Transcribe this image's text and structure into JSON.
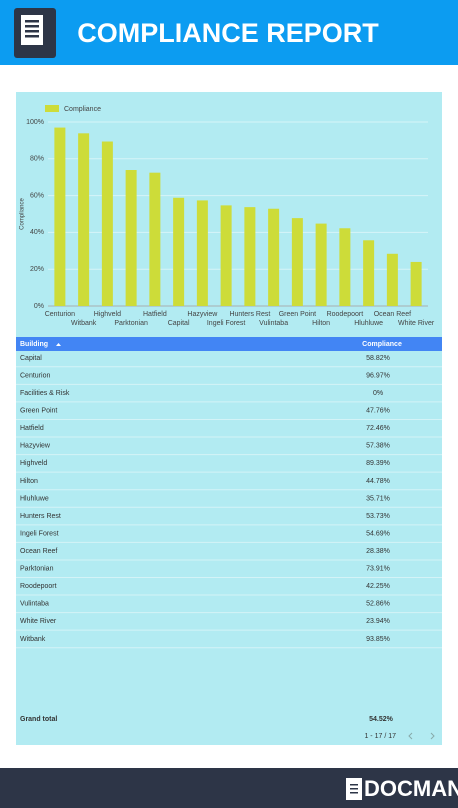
{
  "header": {
    "title": "COMPLIANCE REPORT"
  },
  "chart_data": {
    "type": "bar",
    "y_label": "Compliance",
    "categories": [
      "Centurion",
      "Witbank",
      "Highveld",
      "Parktonian",
      "Hatfield",
      "Capital",
      "Hazyview",
      "Ingeli Forest",
      "Hunters Rest",
      "Vulintaba",
      "Green Point",
      "Hilton",
      "Roodepoort",
      "Hluhluwe",
      "Ocean Reef",
      "White River"
    ],
    "series": [
      {
        "name": "Compliance",
        "color": "#cddc39",
        "values": [
          96.97,
          93.85,
          89.39,
          73.91,
          72.46,
          58.82,
          57.38,
          54.69,
          53.73,
          52.86,
          47.76,
          44.78,
          42.25,
          35.71,
          28.38,
          23.94
        ]
      }
    ],
    "ylim": [
      0,
      100
    ],
    "yticks": [
      {
        "value": 0,
        "label": "0%"
      },
      {
        "value": 20,
        "label": "20%"
      },
      {
        "value": 40,
        "label": "40%"
      },
      {
        "value": 60,
        "label": "60%"
      },
      {
        "value": 80,
        "label": "80%"
      },
      {
        "value": 100,
        "label": "100%"
      }
    ],
    "grid": true,
    "legend": "top-left"
  },
  "table": {
    "columns": [
      "Building",
      "Compliance"
    ],
    "rows": [
      [
        "Capital",
        "58.82%"
      ],
      [
        "Centurion",
        "96.97%"
      ],
      [
        "Facilities & Risk",
        "0%"
      ],
      [
        "Green Point",
        "47.76%"
      ],
      [
        "Hatfield",
        "72.46%"
      ],
      [
        "Hazyview",
        "57.38%"
      ],
      [
        "Highveld",
        "89.39%"
      ],
      [
        "Hilton",
        "44.78%"
      ],
      [
        "Hluhluwe",
        "35.71%"
      ],
      [
        "Hunters Rest",
        "53.73%"
      ],
      [
        "Ingeli Forest",
        "54.69%"
      ],
      [
        "Ocean Reef",
        "28.38%"
      ],
      [
        "Parktonian",
        "73.91%"
      ],
      [
        "Roodepoort",
        "42.25%"
      ],
      [
        "Vulintaba",
        "52.86%"
      ],
      [
        "White River",
        "23.94%"
      ],
      [
        "Witbank",
        "93.85%"
      ]
    ],
    "total": [
      "Grand total",
      "54.52%"
    ],
    "pagination": "1 - 17 / 17"
  },
  "footer": {
    "logo": "DOCMAN"
  }
}
